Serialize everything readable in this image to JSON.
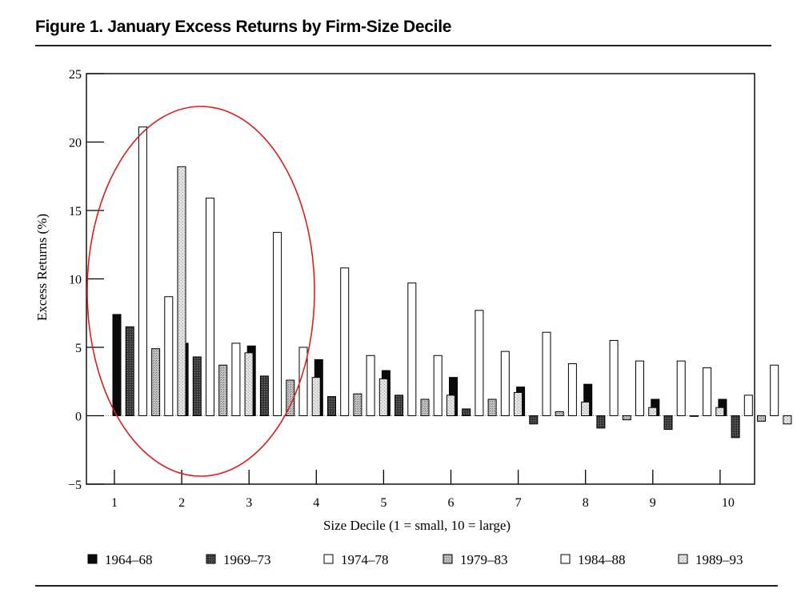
{
  "figure": {
    "title": "Figure 1.  January Excess Returns by Firm-Size Decile"
  },
  "chart_data": {
    "type": "bar",
    "title": "Figure 1.  January Excess Returns by Firm-Size Decile",
    "xlabel": "Size Decile (1 = small, 10 = large)",
    "ylabel": "Excess Returns (%)",
    "ylim": [
      -5,
      25
    ],
    "yticks": [
      -5,
      0,
      5,
      10,
      15,
      20,
      25
    ],
    "categories": [
      "1",
      "2",
      "3",
      "4",
      "5",
      "6",
      "7",
      "8",
      "9",
      "10"
    ],
    "series": [
      {
        "name": "1964–68",
        "fill": "#0a0a0a",
        "pattern": "solid",
        "values": [
          7.4,
          5.3,
          5.1,
          4.1,
          3.3,
          2.8,
          2.1,
          2.3,
          1.2,
          1.2
        ]
      },
      {
        "name": "1969–73",
        "fill": "#3a3a3a",
        "pattern": "dark",
        "values": [
          6.5,
          4.3,
          2.9,
          1.4,
          1.5,
          0.5,
          -0.6,
          -0.9,
          -1.0,
          -1.6
        ]
      },
      {
        "name": "1974–78",
        "fill": "#ffffff",
        "pattern": "open",
        "values": [
          21.1,
          15.9,
          13.4,
          10.8,
          9.7,
          7.7,
          6.1,
          5.5,
          4.0,
          1.5
        ]
      },
      {
        "name": "1979–83",
        "fill": "#b4b4b4",
        "pattern": "stipple",
        "values": [
          4.9,
          3.7,
          2.6,
          1.6,
          1.2,
          1.2,
          0.3,
          -0.3,
          0.0,
          -0.4
        ]
      },
      {
        "name": "1984–88",
        "fill": "#ffffff",
        "pattern": "open",
        "values": [
          8.7,
          5.3,
          5.0,
          4.4,
          4.4,
          4.7,
          3.8,
          4.0,
          3.5,
          3.7
        ]
      },
      {
        "name": "1989–93",
        "fill": "#d8d8d8",
        "pattern": "light",
        "values": [
          18.2,
          4.6,
          2.8,
          2.7,
          1.5,
          1.7,
          1.0,
          0.6,
          0.6,
          -0.6
        ]
      }
    ],
    "grid": false,
    "legend_position": "bottom",
    "annotation": {
      "type": "ellipse",
      "color": "#d62020",
      "encloses_categories": [
        "1",
        "2",
        "3"
      ]
    }
  }
}
